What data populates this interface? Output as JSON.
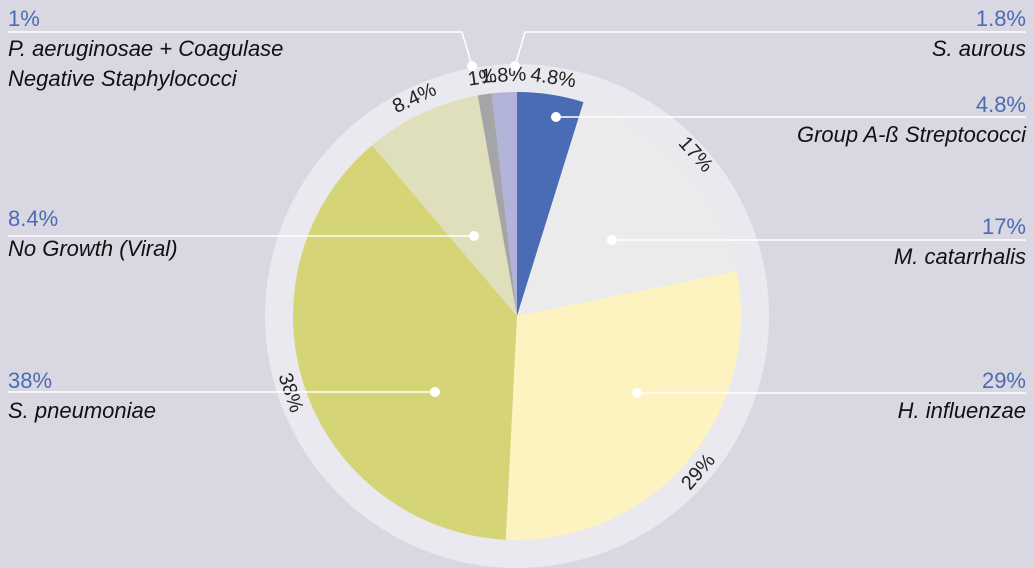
{
  "chart_data": {
    "type": "pie",
    "categories": [
      "Group A-ß Streptococci",
      "M. catarrhalis",
      "H. influenzae",
      "S. pneumoniae",
      "No Growth (Viral)",
      "P. aeruginosae + Coagulase Negative Staphylococci",
      "S. aurous"
    ],
    "values": [
      4.8,
      17,
      29,
      38,
      8.4,
      1,
      1.8
    ],
    "value_labels": [
      "4.8%",
      "17%",
      "29%",
      "38%",
      "8.4%",
      "1%",
      "1.8%"
    ],
    "colors": [
      "#4a6cb4",
      "#ebebeb",
      "#fdf3c0",
      "#d5d577",
      "#e0dfbb",
      "#a5a5a7",
      "#b1b4d8"
    ]
  }
}
